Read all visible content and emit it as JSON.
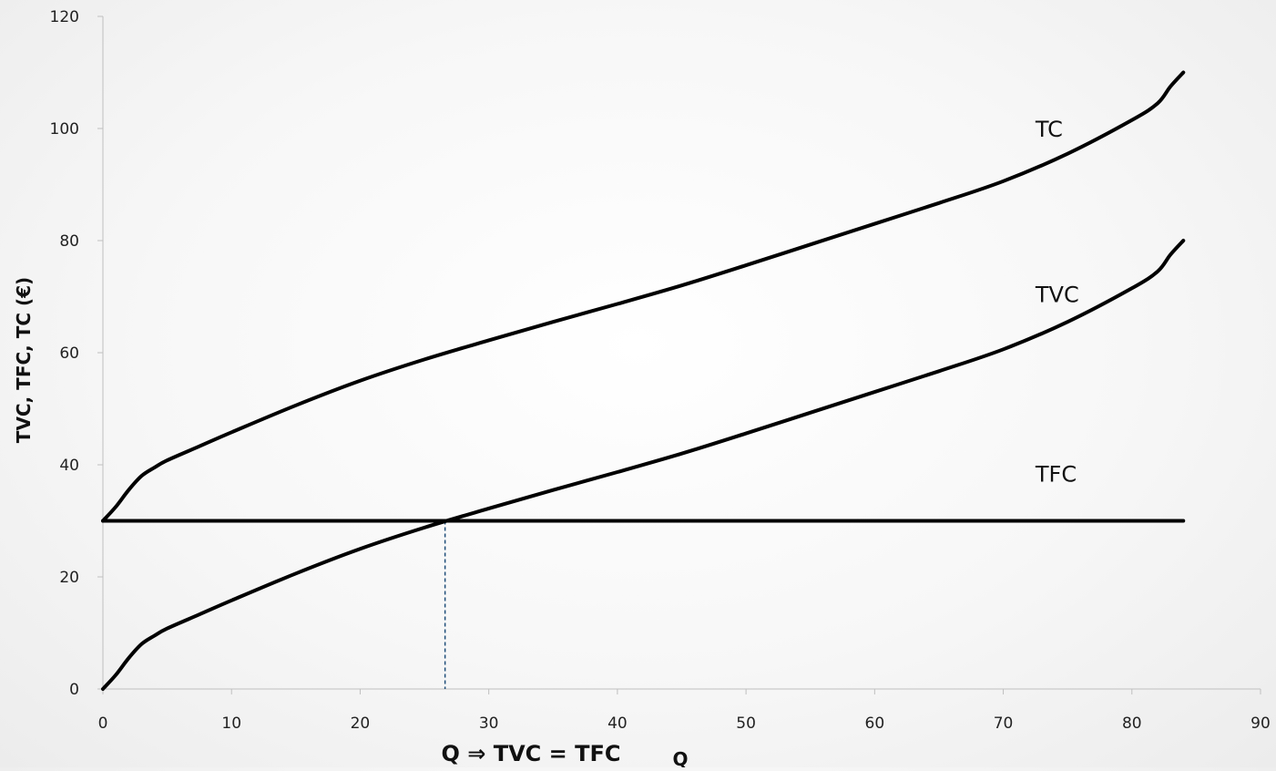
{
  "chart_data": {
    "type": "line",
    "title": "",
    "xlabel": "Q",
    "ylabel": "TVC, TFC, TC (€)",
    "xlim": [
      0,
      90
    ],
    "ylim": [
      0,
      120
    ],
    "x_ticks": [
      0,
      10,
      20,
      30,
      40,
      50,
      60,
      70,
      80,
      90
    ],
    "y_ticks": [
      0,
      20,
      40,
      60,
      80,
      100,
      120
    ],
    "x_tick_labels": [
      "0",
      "10",
      "20",
      "30",
      "40",
      "50",
      "60",
      "70",
      "80",
      "90"
    ],
    "y_tick_labels": [
      "0",
      "20",
      "40",
      "60",
      "80",
      "100",
      "120"
    ],
    "grid": false,
    "series": [
      {
        "name": "TC",
        "color": "#000000",
        "x": [
          0,
          1,
          2,
          3,
          4,
          5,
          7.5,
          10,
          15,
          20,
          25,
          30,
          35,
          40,
          45,
          50,
          55,
          60,
          65,
          70,
          75,
          80,
          82,
          83,
          84
        ],
        "y": [
          30,
          32.5,
          35.5,
          38,
          39.5,
          40.8,
          43.3,
          45.8,
          50.6,
          55,
          58.8,
          62.2,
          65.5,
          68.7,
          72,
          75.6,
          79.3,
          83,
          86.7,
          90.6,
          95.5,
          101.5,
          104.5,
          107.5,
          110
        ]
      },
      {
        "name": "TVC",
        "color": "#000000",
        "x": [
          0,
          1,
          2,
          3,
          4,
          5,
          7.5,
          10,
          15,
          20,
          25,
          30,
          35,
          40,
          45,
          50,
          55,
          60,
          65,
          70,
          75,
          80,
          82,
          83,
          84
        ],
        "y": [
          0,
          2.5,
          5.5,
          8,
          9.5,
          10.8,
          13.3,
          15.8,
          20.6,
          25,
          28.8,
          32.2,
          35.5,
          38.7,
          42,
          45.6,
          49.3,
          53,
          56.7,
          60.6,
          65.5,
          71.5,
          74.5,
          77.5,
          80
        ]
      },
      {
        "name": "TFC",
        "color": "#000000",
        "x": [
          0,
          84
        ],
        "y": [
          30,
          30
        ]
      }
    ],
    "series_label_positions": [
      {
        "name": "TC",
        "x": 72.5,
        "y": 98.5
      },
      {
        "name": "TVC",
        "x": 72.5,
        "y": 69
      },
      {
        "name": "TFC",
        "x": 72.5,
        "y": 37
      }
    ],
    "annotations": [
      {
        "text": "Q ⇒ TVC = TFC",
        "x": 26.6,
        "marker": "dashed vertical line from TVC/TFC intersection to x-axis",
        "color": "#1f4e79"
      }
    ]
  }
}
